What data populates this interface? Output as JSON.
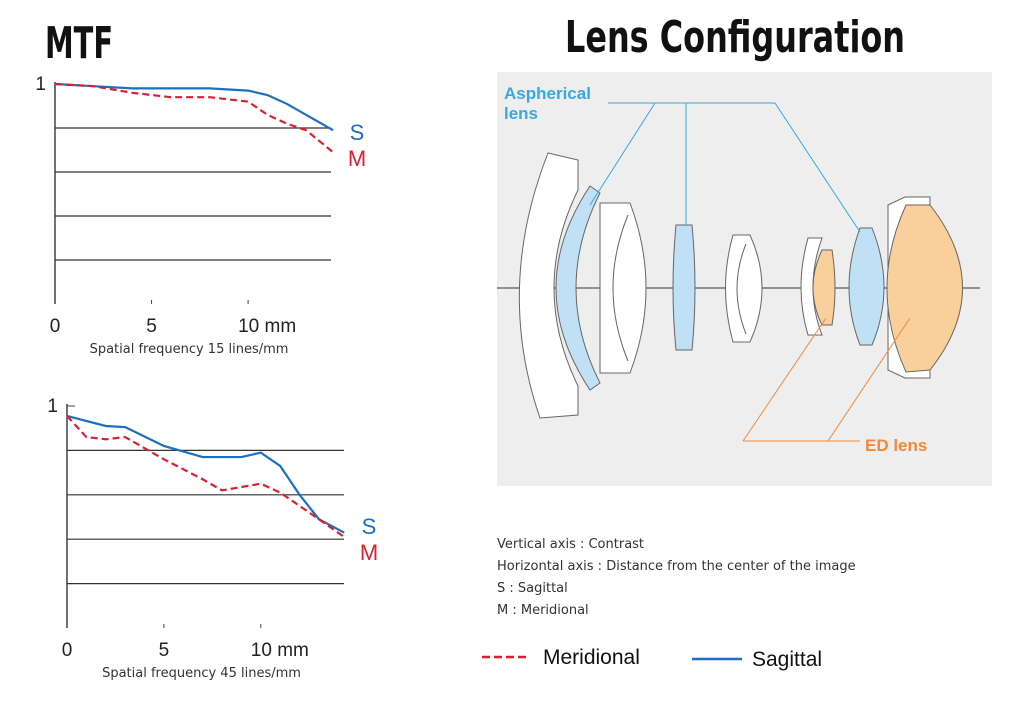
{
  "mtf_title": "MTF",
  "chart_data": [
    {
      "type": "line",
      "xlabel": "Spatial frequency 15 lines/mm",
      "xlim": [
        0,
        14.5
      ],
      "ylim": [
        0,
        1
      ],
      "xticks": [
        0,
        5,
        {
          "value": 10,
          "label": "10 mm"
        }
      ],
      "yticks": [
        1
      ],
      "ygrid": [
        0.2,
        0.4,
        0.6,
        0.8
      ],
      "series": [
        {
          "label": "S",
          "color": "#1f6fbf",
          "dashed": false,
          "x": [
            0,
            2,
            4,
            6,
            8,
            10,
            11,
            12,
            13,
            14.4
          ],
          "values": [
            1.0,
            0.99,
            0.98,
            0.98,
            0.98,
            0.97,
            0.95,
            0.91,
            0.86,
            0.79
          ]
        },
        {
          "label": "M",
          "color": "#d92030",
          "dashed": true,
          "x": [
            0,
            2,
            4,
            6,
            8,
            10,
            11,
            12,
            13,
            14.4
          ],
          "values": [
            1.0,
            0.99,
            0.96,
            0.94,
            0.94,
            0.92,
            0.86,
            0.82,
            0.79,
            0.69
          ]
        }
      ]
    },
    {
      "type": "line",
      "xlabel": "Spatial frequency 45 lines/mm",
      "xlim": [
        0,
        14.5
      ],
      "ylim": [
        0,
        1
      ],
      "xticks": [
        0,
        5,
        {
          "value": 10,
          "label": "10 mm"
        }
      ],
      "yticks": [
        1
      ],
      "ygrid": [
        0.2,
        0.4,
        0.6,
        0.8
      ],
      "series": [
        {
          "label": "S",
          "color": "#1f6fbf",
          "dashed": false,
          "x": [
            0,
            2,
            3,
            5,
            7,
            9,
            10,
            11,
            12,
            13,
            14.3
          ],
          "values": [
            0.955,
            0.91,
            0.905,
            0.82,
            0.77,
            0.77,
            0.79,
            0.73,
            0.6,
            0.49,
            0.43
          ]
        },
        {
          "label": "M",
          "color": "#d92030",
          "dashed": true,
          "x": [
            0,
            1,
            2,
            3,
            5,
            7,
            8,
            10,
            11,
            12,
            13,
            14.3
          ],
          "values": [
            0.955,
            0.86,
            0.85,
            0.86,
            0.76,
            0.67,
            0.62,
            0.65,
            0.61,
            0.55,
            0.49,
            0.41
          ]
        }
      ]
    }
  ],
  "legend": [
    {
      "name": "Meridional",
      "color": "#d92030",
      "dashed": true
    },
    {
      "name": "Sagittal",
      "color": "#1f6fbf",
      "dashed": false
    }
  ],
  "lens": {
    "title": "Lens Configuration",
    "aspherical_label": [
      "Aspherical",
      "lens"
    ],
    "ed_label": "ED lens"
  },
  "notes": [
    "Vertical axis : Contrast",
    "Horizontal axis : Distance from the center of the image",
    "S : Sagittal",
    "M : Meridional"
  ]
}
